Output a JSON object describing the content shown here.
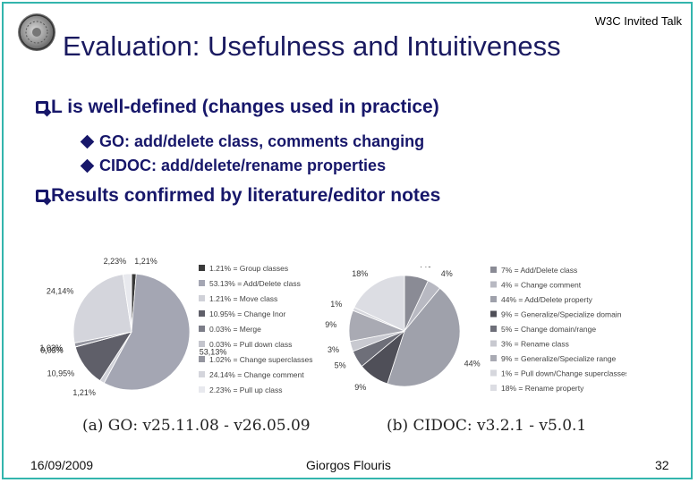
{
  "header": {
    "tag": "W3C Invited Talk",
    "title": "Evaluation: Usefulness and Intuitiveness"
  },
  "bullets": [
    {
      "text": "L is well-defined (changes used in practice)"
    },
    {
      "text": "GO: add/delete class, comments changing"
    },
    {
      "text": "CIDOC: add/delete/rename properties"
    },
    {
      "text": "Results confirmed by literature/editor notes"
    }
  ],
  "colors": {
    "title": "#1a1a60",
    "bullets": "#17176a",
    "border": "#33b5ad"
  },
  "chart_data": [
    {
      "type": "pie",
      "caption": "(a) GO: v25.11.08 - v26.05.09",
      "slices": [
        {
          "value": 1.21,
          "pie_label": "1,21%",
          "legend": "1.21% = Group classes",
          "color": "#3a3a3a"
        },
        {
          "value": 53.13,
          "pie_label": "53,13%",
          "legend": "53.13% = Add/Delete class",
          "color": "#a4a6b3"
        },
        {
          "value": 1.21,
          "pie_label": "1,21%",
          "legend": "1.21% = Move class",
          "color": "#d0d1d8"
        },
        {
          "value": 10.95,
          "pie_label": "10,95%",
          "legend": "10.95% = Change Inor",
          "color": "#5f5f69"
        },
        {
          "value": 0.03,
          "pie_label": "0,03%",
          "legend": "0.03% = Merge",
          "color": "#7c7d88"
        },
        {
          "value": 0.03,
          "pie_label": "0,03%",
          "legend": "0.03% = Pull down class",
          "color": "#c4c5cd"
        },
        {
          "value": 1.02,
          "pie_label": "1,02%",
          "legend": "1.02% = Change superclasses",
          "color": "#94959f"
        },
        {
          "value": 24.14,
          "pie_label": "24,14%",
          "legend": "24.14% = Change comment",
          "color": "#d4d5dc"
        },
        {
          "value": 2.23,
          "pie_label": "2,23%",
          "legend": "2.23% = Pull up class",
          "color": "#e8e9ee"
        }
      ]
    },
    {
      "type": "pie",
      "caption": "(b) CIDOC: v3.2.1 - v5.0.1",
      "slices": [
        {
          "value": 7,
          "pie_label": "7%",
          "legend": "7% = Add/Delete class",
          "color": "#8a8b95"
        },
        {
          "value": 4,
          "pie_label": "4%",
          "legend": "4% = Change comment",
          "color": "#b8b9c2"
        },
        {
          "value": 44,
          "pie_label": "44%",
          "legend": "44% = Add/Delete property",
          "color": "#9fa1ab"
        },
        {
          "value": 9,
          "pie_label": "9%",
          "legend": "9% = Generalize/Specialize domain",
          "color": "#4f4f58"
        },
        {
          "value": 5,
          "pie_label": "5%",
          "legend": "5% = Change domain/range",
          "color": "#6e6f79"
        },
        {
          "value": 3,
          "pie_label": "3%",
          "legend": "3% = Rename class",
          "color": "#c8c9d0"
        },
        {
          "value": 9,
          "pie_label": "9%",
          "legend": "9% = Generalize/Specialize range",
          "color": "#a9aab3"
        },
        {
          "value": 1,
          "pie_label": "1%",
          "legend": "1% = Pull down/Change superclasses",
          "color": "#d6d7dd"
        },
        {
          "value": 18,
          "pie_label": "18%",
          "legend": "18% = Rename property",
          "color": "#dcdde3"
        }
      ]
    }
  ],
  "footer": {
    "date": "16/09/2009",
    "author": "Giorgos Flouris",
    "page": "32"
  }
}
